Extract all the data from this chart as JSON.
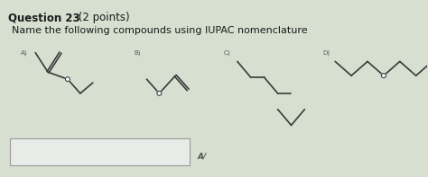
{
  "title_bold": "Question 23",
  "title_normal": " (2 points)",
  "subtitle": "Name the following compounds using IUPAC nomenclature",
  "bg_color": "#d6dfd0",
  "text_color": "#1a1a1a",
  "line_color": "#3a3a3a",
  "lw": 1.2,
  "label_A": "A)",
  "label_B": "B)",
  "label_C": "C)",
  "label_D": "D)",
  "answer_label": "A/"
}
